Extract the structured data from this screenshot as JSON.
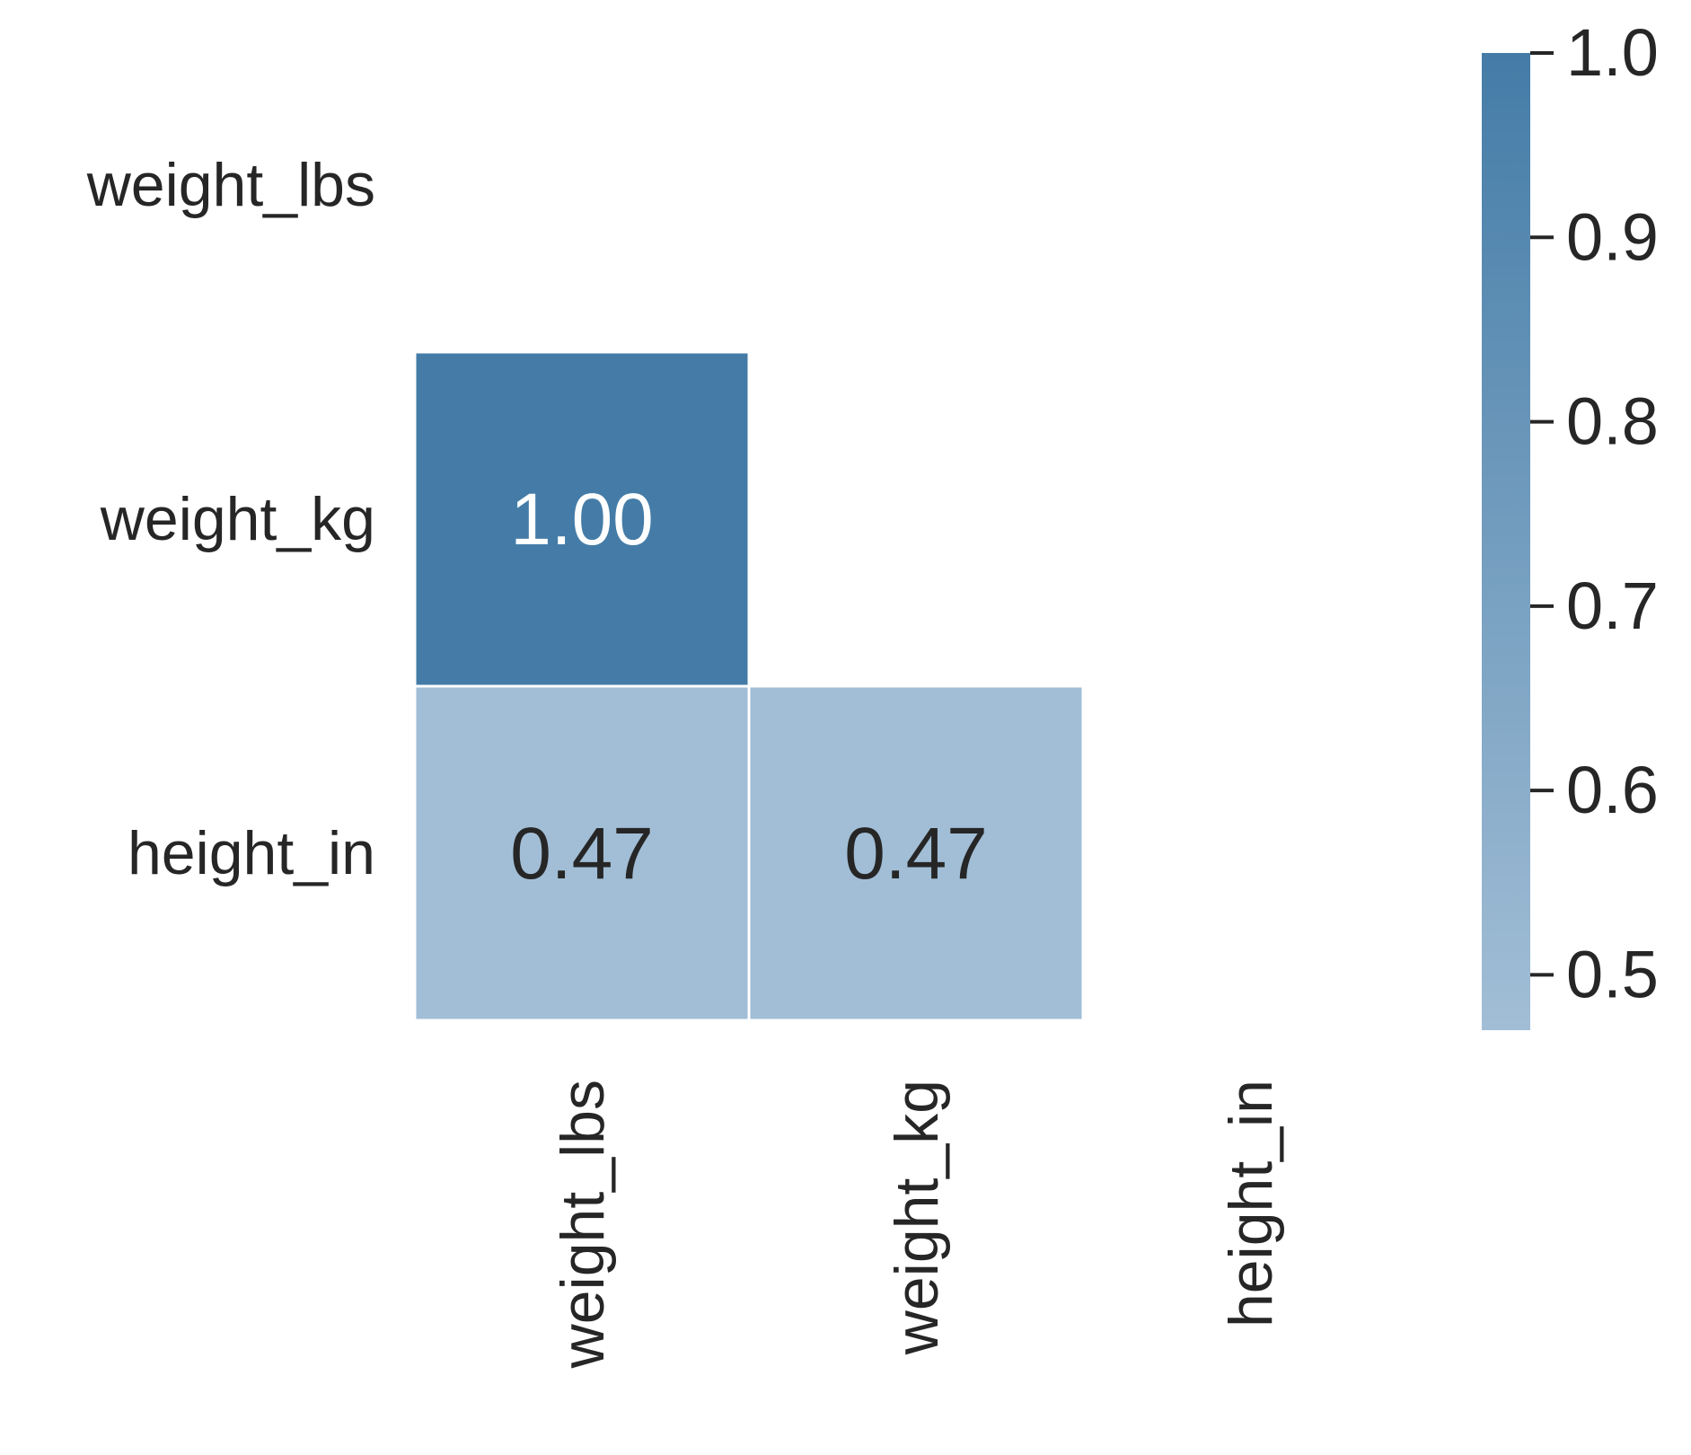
{
  "chart_data": {
    "type": "heatmap",
    "title": "",
    "xlabel": "",
    "ylabel": "",
    "x_categories": [
      "weight_lbs",
      "weight_kg",
      "height_in"
    ],
    "y_categories": [
      "weight_lbs",
      "weight_kg",
      "height_in"
    ],
    "cells": [
      {
        "row": 1,
        "col": 0,
        "value": 1.0,
        "label": "1.00"
      },
      {
        "row": 2,
        "col": 0,
        "value": 0.47,
        "label": "0.47"
      },
      {
        "row": 2,
        "col": 1,
        "value": 0.47,
        "label": "0.47"
      }
    ],
    "masked": "upper triangle including diagonal",
    "colorbar": {
      "min": 0.47,
      "max": 1.0,
      "ticks": [
        0.5,
        0.6,
        0.7,
        0.8,
        0.9,
        1.0
      ],
      "tick_labels": [
        "0.5",
        "0.6",
        "0.7",
        "0.8",
        "0.9",
        "1.0"
      ],
      "color_low": "#a2bed6",
      "color_high": "#447ca7"
    },
    "annotation_color_dark_cell": "#ffffff",
    "annotation_color_light_cell": "#262626"
  }
}
